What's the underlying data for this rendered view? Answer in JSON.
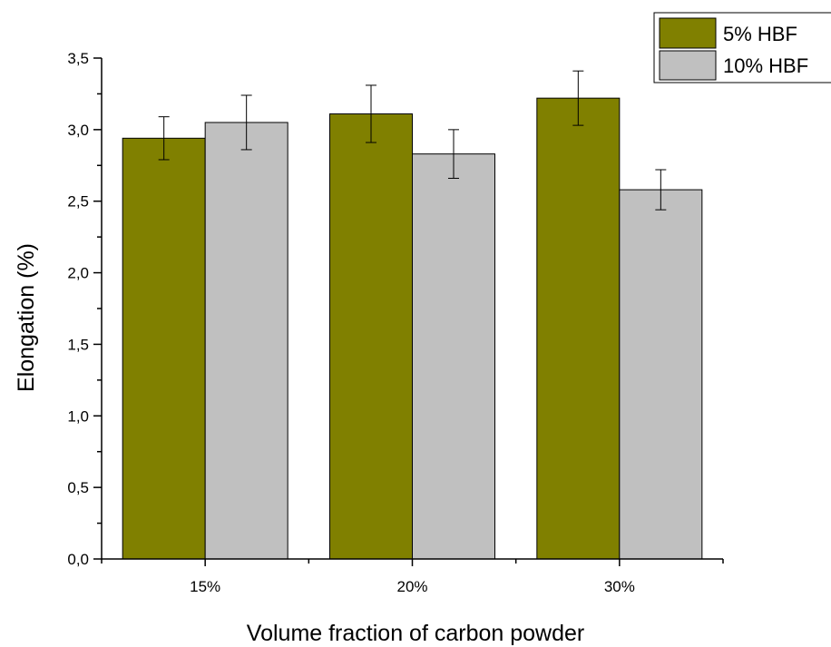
{
  "chart_data": {
    "type": "bar",
    "title": "",
    "xlabel": "Volume fraction of carbon powder",
    "ylabel": "Elongation (%)",
    "categories": [
      "15%",
      "20%",
      "30%"
    ],
    "ylim": [
      0,
      3.5
    ],
    "yticks": [
      "0,0",
      "0,5",
      "1,0",
      "1,5",
      "2,0",
      "2,5",
      "3,0",
      "3,5"
    ],
    "grid": false,
    "legend_position": "top-right",
    "series": [
      {
        "name": "5% HBF",
        "color": "#808000",
        "values": [
          2.94,
          3.11,
          3.22
        ],
        "errors": [
          0.15,
          0.2,
          0.19
        ]
      },
      {
        "name": "10% HBF",
        "color": "#c0c0c0",
        "values": [
          3.05,
          2.83,
          2.58
        ],
        "errors": [
          0.19,
          0.17,
          0.14
        ]
      }
    ]
  }
}
